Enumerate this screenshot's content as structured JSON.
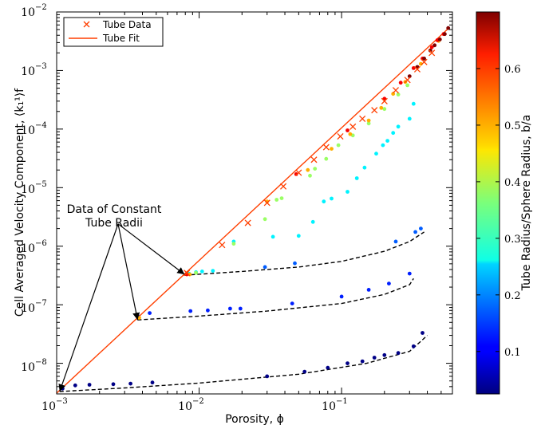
{
  "chart_data": {
    "type": "scatter",
    "xlabel": "Porosity, ϕ",
    "ylabel": "Cell Averaged Velocity Component, ⟨k₁¹⟩f",
    "xscale": "log",
    "yscale": "log",
    "xlim": [
      0.001,
      0.6
    ],
    "ylim": [
      3e-09,
      0.01
    ],
    "x_ticks": [
      {
        "value": 0.001,
        "base": "10",
        "exp": "−3"
      },
      {
        "value": 0.01,
        "base": "10",
        "exp": "−2"
      },
      {
        "value": 0.1,
        "base": "10",
        "exp": "−1"
      }
    ],
    "y_ticks": [
      {
        "value": 1e-08,
        "base": "10",
        "exp": "−8"
      },
      {
        "value": 1e-07,
        "base": "10",
        "exp": "−7"
      },
      {
        "value": 1e-06,
        "base": "10",
        "exp": "−6"
      },
      {
        "value": 1e-05,
        "base": "10",
        "exp": "−5"
      },
      {
        "value": 0.0001,
        "base": "10",
        "exp": "−4"
      },
      {
        "value": 0.001,
        "base": "10",
        "exp": "−3"
      },
      {
        "value": 0.01,
        "base": "10",
        "exp": "−2"
      }
    ],
    "legend": {
      "position": "top-left",
      "entries": [
        {
          "label": "Tube Data",
          "marker": "x",
          "color": "#ff3f00"
        },
        {
          "label": "Tube Fit",
          "marker": "line",
          "color": "#ff3f00"
        }
      ]
    },
    "colorbar": {
      "label": "Tube Radius/Sphere Radius, b/a",
      "range": [
        0.025,
        0.7
      ],
      "ticks": [
        {
          "value": 0.1,
          "label": "0.1"
        },
        {
          "value": 0.2,
          "label": "0.2"
        },
        {
          "value": 0.3,
          "label": "0.3"
        },
        {
          "value": 0.4,
          "label": "0.4"
        },
        {
          "value": 0.5,
          "label": "0.5"
        },
        {
          "value": 0.6,
          "label": "0.6"
        }
      ]
    },
    "annotation": {
      "text_lines": [
        "Data of Constant",
        "Tube Radii"
      ],
      "origin": [
        0.0027,
        2.4e-06
      ],
      "targets": [
        [
          0.0079,
          3.3e-07
        ],
        [
          0.0037,
          5.5e-08
        ],
        [
          0.00105,
          3.3e-09
        ]
      ]
    },
    "tube_fit": {
      "x": [
        0.001,
        0.56
      ],
      "y": [
        3.1e-09,
        0.0052
      ]
    },
    "tube_data": {
      "x": [
        0.0082,
        0.0145,
        0.022,
        0.03,
        0.039,
        0.05,
        0.064,
        0.078,
        0.098,
        0.12,
        0.14,
        0.17,
        0.2,
        0.24,
        0.29,
        0.34,
        0.38,
        0.43
      ],
      "y": [
        3.5e-07,
        1.05e-06,
        2.5e-06,
        5.5e-06,
        1.05e-05,
        1.8e-05,
        3e-05,
        4.9e-05,
        7.5e-05,
        0.00011,
        0.00015,
        0.00021,
        0.0003,
        0.00046,
        0.00069,
        0.00105,
        0.0014,
        0.002
      ]
    },
    "series": [
      {
        "name": "b/a ≈ 0.03",
        "c": 0.03,
        "x": [
          0.0011,
          0.00135,
          0.0017,
          0.0025,
          0.0033,
          0.0047,
          0.03,
          0.055,
          0.08,
          0.11,
          0.14,
          0.17,
          0.2,
          0.25,
          0.32,
          0.37
        ],
        "y": [
          3.7e-09,
          4.2e-09,
          4.3e-09,
          4.4e-09,
          4.5e-09,
          4.7e-09,
          6e-09,
          7.2e-09,
          8.4e-09,
          1e-08,
          1.08e-08,
          1.25e-08,
          1.38e-08,
          1.5e-08,
          1.95e-08,
          3.3e-08
        ]
      },
      {
        "name": "b/a ≈ 0.13",
        "c": 0.13,
        "x": [
          0.0037,
          0.0045,
          0.0087,
          0.0115,
          0.0165,
          0.0195,
          0.045,
          0.1,
          0.155,
          0.215,
          0.3
        ],
        "y": [
          6.5e-08,
          7.2e-08,
          7.8e-08,
          8e-08,
          8.6e-08,
          8.6e-08,
          1.05e-07,
          1.38e-07,
          1.8e-07,
          2.3e-07,
          3.4e-07
        ]
      },
      {
        "name": "b/a ≈ 0.17",
        "c": 0.17,
        "x": [
          0.029,
          0.047,
          0.24,
          0.33,
          0.36
        ],
        "y": [
          4.4e-07,
          5.1e-07,
          1.2e-06,
          1.75e-06,
          2e-06
        ]
      },
      {
        "name": "b/a ≈ 0.27",
        "c": 0.27,
        "x": [
          0.0085,
          0.0095,
          0.0105,
          0.0125,
          0.0175,
          0.033,
          0.05,
          0.063,
          0.075,
          0.085,
          0.11,
          0.128,
          0.145,
          0.175,
          0.195,
          0.21,
          0.23,
          0.25,
          0.3,
          0.32
        ],
        "y": [
          3.4e-07,
          3.6e-07,
          3.7e-07,
          3.8e-07,
          1.2e-06,
          1.45e-06,
          1.5e-06,
          2.6e-06,
          5.8e-06,
          6.5e-06,
          8.5e-06,
          1.45e-05,
          2.2e-05,
          3.8e-05,
          5.3e-05,
          6.3e-05,
          8.6e-05,
          0.00011,
          0.00015,
          0.00027
        ]
      },
      {
        "name": "b/a ≈ 0.38",
        "c": 0.38,
        "x": [
          0.0095,
          0.0175,
          0.029,
          0.035,
          0.038,
          0.06,
          0.065,
          0.078,
          0.095,
          0.12,
          0.155,
          0.2,
          0.25,
          0.29
        ],
        "y": [
          3.5e-07,
          1.1e-06,
          2.9e-06,
          6.2e-06,
          6.6e-06,
          1.6e-05,
          2.1e-05,
          3.1e-05,
          5.3e-05,
          7.8e-05,
          0.000125,
          0.00022,
          0.00039,
          0.00056
        ]
      },
      {
        "name": "b/a ≈ 0.5",
        "c": 0.5,
        "x": [
          0.0038,
          0.0086,
          0.03,
          0.058,
          0.085,
          0.115,
          0.155,
          0.19,
          0.23,
          0.28,
          0.36,
          0.42,
          0.48
        ],
        "y": [
          6e-08,
          3.3e-07,
          5.8e-06,
          2e-05,
          4.6e-05,
          8.2e-05,
          0.00014,
          0.00023,
          0.0004,
          0.00064,
          0.0013,
          0.0022,
          0.0032
        ]
      },
      {
        "name": "b/a ≈ 0.62",
        "c": 0.62,
        "x": [
          0.0082,
          0.048,
          0.11,
          0.2,
          0.26,
          0.32,
          0.37,
          0.43,
          0.47,
          0.52
        ],
        "y": [
          3.3e-07,
          1.7e-05,
          9.5e-05,
          0.00033,
          0.00062,
          0.0011,
          0.0016,
          0.0025,
          0.0033,
          0.0042
        ]
      },
      {
        "name": "b/a ≈ 0.7",
        "c": 0.7,
        "x": [
          0.3,
          0.34,
          0.38,
          0.42,
          0.45,
          0.49,
          0.53,
          0.56
        ],
        "y": [
          0.0008,
          0.00115,
          0.0016,
          0.0022,
          0.0027,
          0.0034,
          0.0042,
          0.0053
        ]
      }
    ],
    "constant_radius_fits": [
      {
        "x": [
          0.0079,
          0.02,
          0.05,
          0.1,
          0.2,
          0.3,
          0.38
        ],
        "y": [
          3.2e-07,
          3.7e-07,
          4.4e-07,
          5.5e-07,
          8.2e-07,
          1.2e-06,
          1.75e-06
        ]
      },
      {
        "x": [
          0.0037,
          0.01,
          0.03,
          0.1,
          0.2,
          0.3,
          0.32
        ],
        "y": [
          5.5e-08,
          6.4e-08,
          7.8e-08,
          1.05e-07,
          1.5e-07,
          2.2e-07,
          2.8e-07
        ]
      },
      {
        "x": [
          0.00105,
          0.003,
          0.01,
          0.05,
          0.15,
          0.3,
          0.4
        ],
        "y": [
          3.3e-09,
          3.8e-09,
          4.6e-09,
          6.5e-09,
          1e-08,
          1.6e-08,
          3e-08
        ]
      }
    ]
  }
}
